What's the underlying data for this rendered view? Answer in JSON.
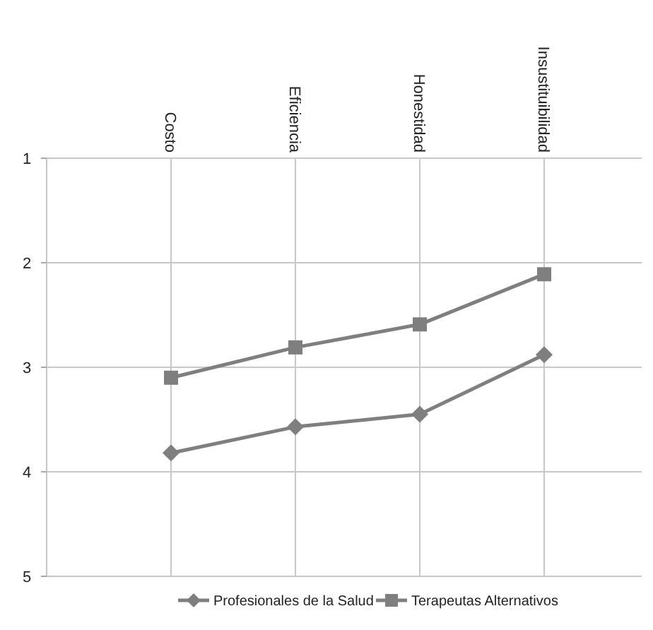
{
  "chart_data": {
    "type": "line",
    "categories": [
      "Costo",
      "Eficiencia",
      "Honestidad",
      "Insustituibilidad"
    ],
    "series": [
      {
        "name": "Profesionales de la Salud",
        "color": "#7f7f7f",
        "marker": "diamond",
        "values": [
          3.82,
          3.57,
          3.45,
          2.88
        ]
      },
      {
        "name": "Terapeutas Alternativos",
        "color": "#7f7f7f",
        "marker": "square",
        "values": [
          3.1,
          2.81,
          2.59,
          2.11
        ]
      }
    ],
    "ylim": [
      5,
      1
    ],
    "yticks": [
      1,
      2,
      3,
      4,
      5
    ],
    "grid": true,
    "legend": "bottom",
    "line_style": "solid"
  }
}
